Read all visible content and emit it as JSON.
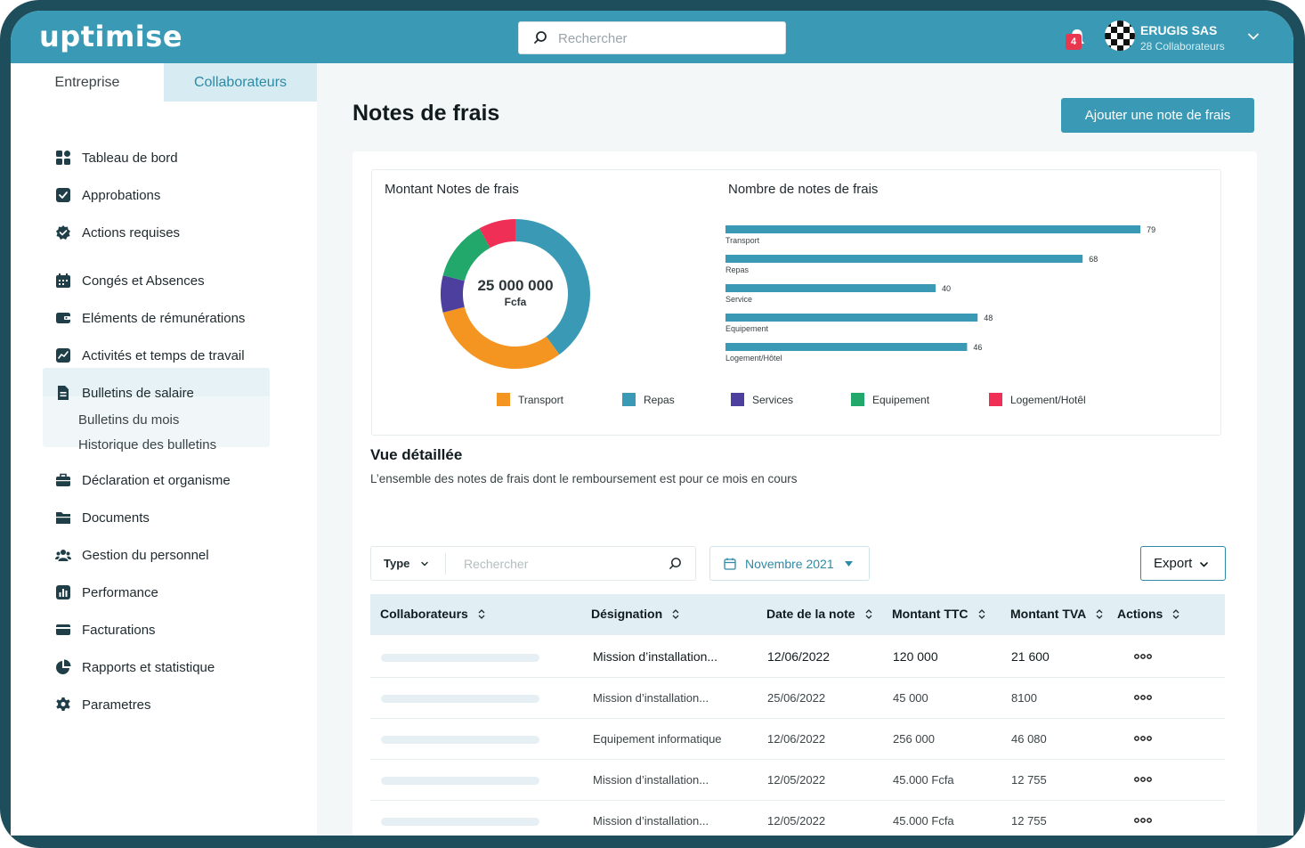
{
  "app": {
    "logo_text": "uptimise"
  },
  "header": {
    "search_placeholder": "Rechercher",
    "notification_count": "4",
    "company_name": "ERUGIS SAS",
    "company_sub": "28 Collaborateurs"
  },
  "sidebar": {
    "tabs": [
      {
        "label": "Entreprise"
      },
      {
        "label": "Collaborateurs"
      }
    ],
    "items": [
      {
        "label": "Tableau de bord",
        "icon": "dashboard-icon"
      },
      {
        "label": "Approbations",
        "icon": "check-square-icon"
      },
      {
        "label": "Actions requises",
        "icon": "badge-check-icon"
      },
      {
        "label": "Congés et Absences",
        "icon": "calendar-icon"
      },
      {
        "label": "Eléments de rémunérations",
        "icon": "wallet-icon"
      },
      {
        "label": "Activités et temps de travail",
        "icon": "activity-icon"
      },
      {
        "label": "Bulletins de salaire",
        "icon": "document-icon"
      },
      {
        "label": "Déclaration et organisme",
        "icon": "briefcase-icon"
      },
      {
        "label": "Documents",
        "icon": "folder-icon"
      },
      {
        "label": "Gestion du personnel",
        "icon": "people-icon"
      },
      {
        "label": "Performance",
        "icon": "bar-chart-icon"
      },
      {
        "label": "Facturations",
        "icon": "credit-card-icon"
      },
      {
        "label": "Rapports et statistique",
        "icon": "pie-chart-icon"
      },
      {
        "label": "Parametres",
        "icon": "gear-icon"
      }
    ],
    "sub_items": [
      {
        "label": "Bulletins du mois"
      },
      {
        "label": "Historique des bulletins"
      }
    ]
  },
  "main": {
    "title": "Notes de frais",
    "add_button": "Ajouter une note de frais",
    "section_title": "Vue détaillée",
    "section_sub": "L’ensemble des notes de frais dont le remboursement est pour ce mois en cours",
    "filter": {
      "type_label": "Type",
      "search_placeholder": "Rechercher",
      "date_label": "Novembre 2021",
      "export_label": "Export"
    },
    "table": {
      "headers": [
        "Collaborateurs",
        "Désignation",
        "Date de la note",
        "Montant TTC",
        "Montant TVA",
        "Actions"
      ],
      "rows": [
        {
          "designation": "Mission d’installation...",
          "date": "12/06/2022",
          "ttc": "120 000",
          "tva": "21 600"
        },
        {
          "designation": "Mission d’installation...",
          "date": "25/06/2022",
          "ttc": "45 000",
          "tva": "8100"
        },
        {
          "designation": "Equipement informatique",
          "date": "12/06/2022",
          "ttc": "256 000",
          "tva": "46 080"
        },
        {
          "designation": "Mission d’installation...",
          "date": "12/05/2022",
          "ttc": "45.000 Fcfa",
          "tva": "12 755"
        },
        {
          "designation": "Mission d’installation...",
          "date": "12/05/2022",
          "ttc": "45.000 Fcfa",
          "tva": "12 755"
        }
      ]
    }
  },
  "colors": {
    "brand": "#3a9ab5",
    "transport": "#f49522",
    "repas": "#3a9ab5",
    "services": "#4c3f9e",
    "equipement": "#22a86a",
    "logement": "#ef2f55"
  },
  "chart_data": [
    {
      "type": "pie",
      "title": "Montant Notes de frais",
      "center_value": "25 000 000",
      "center_unit": "Fcfa",
      "categories": [
        "Repas",
        "Transport",
        "Services",
        "Equipement",
        "Logement/Hotêl"
      ],
      "values": [
        40,
        31,
        8,
        13,
        8
      ],
      "legend_position": "bottom"
    },
    {
      "type": "bar",
      "orientation": "horizontal",
      "title": "Nombre de notes de frais",
      "categories": [
        "Transport",
        "Repas",
        "Service",
        "Equipement",
        "Logement/Hôtel"
      ],
      "values": [
        79,
        68,
        40,
        48,
        46
      ],
      "xlim": [
        0,
        80
      ],
      "grid": false
    }
  ],
  "legend": [
    "Transport",
    "Repas",
    "Services",
    "Equipement",
    "Logement/Hotêl"
  ]
}
